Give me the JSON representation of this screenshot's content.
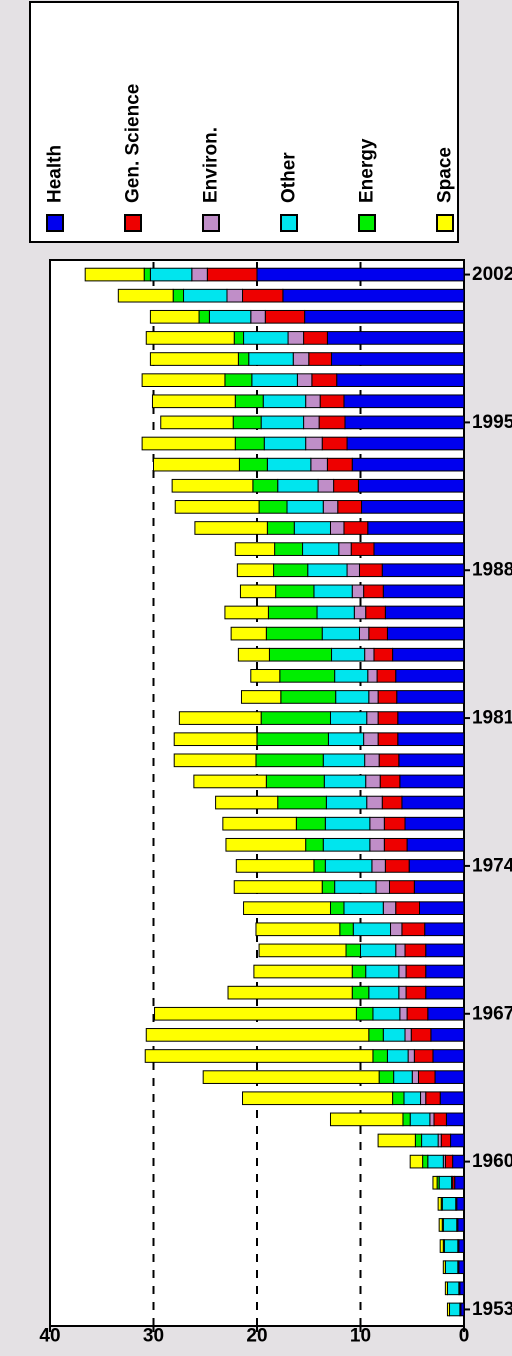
{
  "colors": {
    "background": "#e4e1e4",
    "plot_background": "#ffffff",
    "Space": "#ffff00",
    "Energy": "#00ee00",
    "Other": "#00e5ee",
    "Environ.": "#c08ec8",
    "Gen. Science": "#ee0000",
    "Health": "#0000ee"
  },
  "chart_data": {
    "type": "bar",
    "stacked": true,
    "orientation": "vertical",
    "ylim": [
      0,
      40
    ],
    "yticks": [
      "0",
      "10",
      "20",
      "30",
      "40"
    ],
    "xtick_labels": [
      "1953",
      "1960",
      "1967",
      "1974",
      "1981",
      "1988",
      "1995",
      "2002"
    ],
    "gridlines": [
      10,
      20,
      30
    ],
    "legend_position": "top-right",
    "legend": [
      "Space",
      "Energy",
      "Other",
      "Environ.",
      "Gen. Science",
      "Health"
    ],
    "stack_order": [
      "Health",
      "Gen. Science",
      "Environ.",
      "Other",
      "Energy",
      "Space"
    ],
    "categories": [
      1953,
      1954,
      1955,
      1956,
      1957,
      1958,
      1959,
      1960,
      1961,
      1962,
      1963,
      1964,
      1965,
      1966,
      1967,
      1968,
      1969,
      1970,
      1971,
      1972,
      1973,
      1974,
      1975,
      1976,
      1977,
      1978,
      1979,
      1980,
      1981,
      1982,
      1983,
      1984,
      1985,
      1986,
      1987,
      1988,
      1989,
      1990,
      1991,
      1992,
      1993,
      1994,
      1995,
      1996,
      1997,
      1998,
      1999,
      2000,
      2001,
      2002
    ],
    "series": [
      {
        "name": "Health",
        "values": [
          0.3,
          0.4,
          0.5,
          0.5,
          0.6,
          0.7,
          0.9,
          1.1,
          1.3,
          1.7,
          2.3,
          2.8,
          3.0,
          3.2,
          3.5,
          3.7,
          3.7,
          3.7,
          3.8,
          4.3,
          4.8,
          5.3,
          5.5,
          5.7,
          6.0,
          6.2,
          6.3,
          6.4,
          6.4,
          6.5,
          6.6,
          6.9,
          7.4,
          7.6,
          7.8,
          7.9,
          8.7,
          9.3,
          9.9,
          10.2,
          10.8,
          11.3,
          11.5,
          11.6,
          12.3,
          12.8,
          13.2,
          15.4,
          17.5,
          20.0
        ]
      },
      {
        "name": "Gen. Science",
        "values": [
          0.1,
          0.1,
          0.1,
          0.1,
          0.1,
          0.1,
          0.2,
          0.7,
          0.9,
          1.2,
          1.4,
          1.6,
          1.8,
          1.9,
          2.0,
          1.9,
          1.9,
          2.0,
          2.2,
          2.3,
          2.4,
          2.3,
          2.2,
          2.0,
          1.9,
          1.9,
          1.9,
          1.9,
          1.9,
          1.8,
          1.8,
          1.8,
          1.8,
          1.9,
          1.9,
          2.2,
          2.2,
          2.3,
          2.3,
          2.4,
          2.4,
          2.4,
          2.5,
          2.3,
          2.4,
          2.2,
          2.3,
          3.8,
          3.9,
          4.8
        ]
      },
      {
        "name": "Environ.",
        "values": [
          0.0,
          0.0,
          0.0,
          0.0,
          0.0,
          0.0,
          0.1,
          0.2,
          0.3,
          0.4,
          0.5,
          0.6,
          0.6,
          0.6,
          0.7,
          0.7,
          0.7,
          0.9,
          1.1,
          1.2,
          1.3,
          1.3,
          1.4,
          1.4,
          1.5,
          1.4,
          1.4,
          1.4,
          1.1,
          0.9,
          0.9,
          0.9,
          0.9,
          1.1,
          1.1,
          1.2,
          1.2,
          1.3,
          1.4,
          1.5,
          1.6,
          1.6,
          1.5,
          1.4,
          1.4,
          1.5,
          1.5,
          1.4,
          1.5,
          1.5
        ]
      },
      {
        "name": "Other",
        "values": [
          1.0,
          1.1,
          1.2,
          1.3,
          1.3,
          1.3,
          1.2,
          1.5,
          1.6,
          1.9,
          1.6,
          1.8,
          2.0,
          2.1,
          2.6,
          2.9,
          3.2,
          3.4,
          3.6,
          3.8,
          4.0,
          4.5,
          4.5,
          4.3,
          3.9,
          4.0,
          4.0,
          3.4,
          3.5,
          3.2,
          3.2,
          3.2,
          3.6,
          3.6,
          3.7,
          3.8,
          3.5,
          3.5,
          3.5,
          3.9,
          4.2,
          4.0,
          4.1,
          4.1,
          4.4,
          4.3,
          4.3,
          4.0,
          4.2,
          4.0
        ]
      },
      {
        "name": "Energy",
        "values": [
          0.0,
          0.0,
          0.0,
          0.1,
          0.1,
          0.1,
          0.2,
          0.5,
          0.6,
          0.7,
          1.1,
          1.4,
          1.4,
          1.4,
          1.6,
          1.6,
          1.3,
          1.4,
          1.3,
          1.3,
          1.2,
          1.1,
          1.7,
          2.8,
          4.7,
          5.6,
          6.5,
          6.9,
          6.7,
          5.3,
          5.3,
          6.0,
          5.4,
          4.7,
          3.7,
          3.3,
          2.7,
          2.6,
          2.7,
          2.4,
          2.7,
          2.8,
          2.7,
          2.7,
          2.6,
          1.0,
          0.9,
          1.0,
          1.0,
          0.6
        ]
      },
      {
        "name": "Space",
        "values": [
          0.2,
          0.2,
          0.2,
          0.3,
          0.3,
          0.3,
          0.4,
          1.2,
          3.6,
          7.0,
          14.5,
          17.0,
          22.0,
          21.5,
          19.5,
          12.0,
          9.5,
          8.4,
          8.1,
          8.4,
          8.5,
          7.5,
          7.7,
          7.1,
          6.0,
          7.0,
          7.9,
          8.0,
          7.9,
          3.8,
          2.8,
          3.0,
          3.4,
          4.2,
          3.4,
          3.5,
          3.8,
          7.0,
          8.1,
          7.8,
          8.3,
          9.0,
          7.0,
          8.0,
          8.0,
          8.5,
          8.5,
          4.7,
          5.3,
          5.7
        ]
      }
    ]
  }
}
